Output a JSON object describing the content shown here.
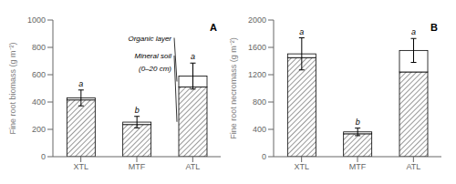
{
  "chart_data": [
    {
      "type": "bar",
      "stacked": true,
      "title": "A",
      "y_label": "Fine root biomass (g m⁻²)",
      "categories": [
        "XTL",
        "MTF",
        "ATL"
      ],
      "series": [
        {
          "color": "white",
          "values": [
            415,
            235,
            510
          ]
        },
        {
          "color": "white",
          "values": [
            15,
            18,
            80
          ]
        }
      ],
      "errors": [
        58,
        42,
        95
      ],
      "letters": [
        "a",
        "b",
        "a"
      ],
      "ylim": [
        0,
        1000
      ],
      "yticks": [
        0,
        200,
        400,
        600,
        800,
        1000
      ],
      "grid": false,
      "annotations": [
        "Organic layer",
        "Mineral soil",
        "(0–20 cm)"
      ]
    },
    {
      "type": "bar",
      "stacked": true,
      "title": "B",
      "y_label": "Fine root necromass (g m⁻²)",
      "categories": [
        "XTL",
        "MTF",
        "ATL"
      ],
      "series": [
        {
          "color": "white",
          "values": [
            1450,
            335,
            1240
          ]
        },
        {
          "color": "white",
          "values": [
            55,
            28,
            315
          ]
        }
      ],
      "errors": [
        235,
        55,
        175
      ],
      "letters": [
        "a",
        "b",
        "a"
      ],
      "ylim": [
        0,
        2000
      ],
      "yticks": [
        0,
        400,
        800,
        1200,
        1600,
        2000
      ],
      "grid": false
    }
  ]
}
